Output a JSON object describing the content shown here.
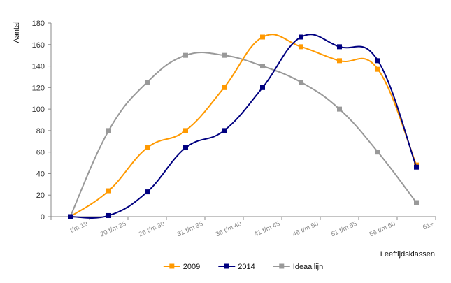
{
  "chart_data": {
    "type": "line",
    "smooth": true,
    "title": "",
    "ylabel": "Aantal",
    "xlabel": "Leeftijdsklassen",
    "ylim": [
      0,
      180
    ],
    "ytick_step": 20,
    "yticks": [
      "0",
      "20",
      "40",
      "60",
      "80",
      "100",
      "120",
      "140",
      "160",
      "180"
    ],
    "grid": false,
    "legend_position": "bottom",
    "categories": [
      "t/m 19",
      "20 t/m 25",
      "26 t/m 30",
      "31 t/m 35",
      "36 t/m 40",
      "41 t/m 45",
      "46 t/m 50",
      "51 t/m 55",
      "56 t/m 60",
      "61+"
    ],
    "series": [
      {
        "name": "2009",
        "color": "#ff9900",
        "values": [
          0,
          24,
          64,
          80,
          120,
          167,
          158,
          145,
          137,
          48
        ]
      },
      {
        "name": "2014",
        "color": "#000080",
        "values": [
          0,
          1,
          23,
          64,
          80,
          120,
          167,
          158,
          145,
          46
        ]
      },
      {
        "name": "Ideaallijn",
        "color": "#999999",
        "values": [
          0,
          80,
          125,
          150,
          150,
          140,
          125,
          100,
          60,
          13
        ]
      }
    ]
  }
}
